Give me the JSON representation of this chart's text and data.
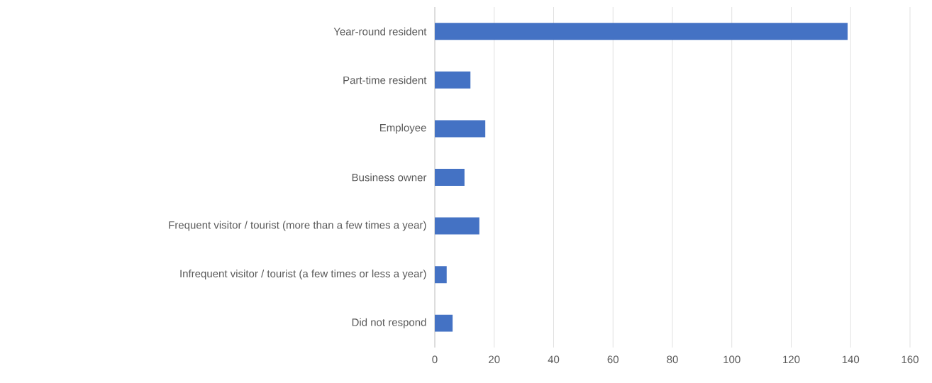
{
  "chart_data": {
    "type": "bar",
    "orientation": "horizontal",
    "categories": [
      "Year-round resident",
      "Part-time resident",
      "Employee",
      "Business owner",
      "Frequent visitor / tourist (more than a few times a year)",
      "Infrequent visitor / tourist (a few times or less a year)",
      "Did not respond"
    ],
    "values": [
      139,
      12,
      17,
      10,
      15,
      4,
      6
    ],
    "color": "#4472c4",
    "xlim": [
      0,
      160
    ],
    "xticks": [
      0,
      20,
      40,
      60,
      80,
      100,
      120,
      140,
      160
    ],
    "grid": "x"
  }
}
